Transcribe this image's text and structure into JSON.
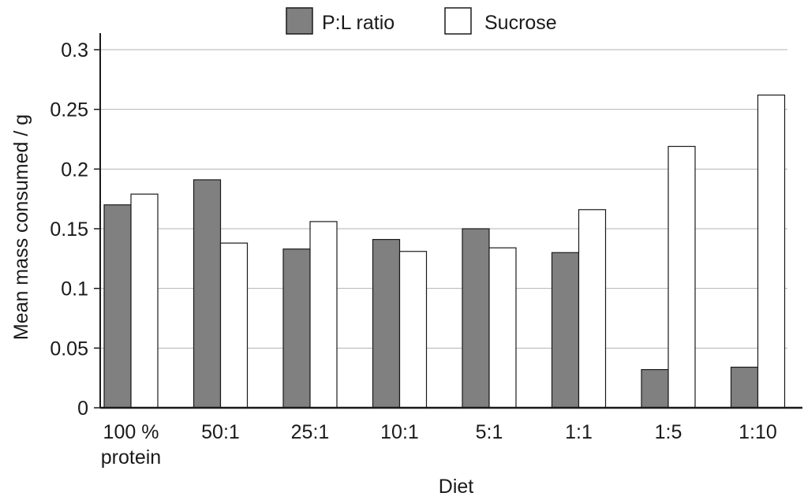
{
  "chart_data": {
    "type": "bar",
    "title": "",
    "xlabel": "Diet",
    "ylabel": "Mean mass consumed / g",
    "categories": [
      [
        "100 %",
        "protein"
      ],
      [
        "50:1"
      ],
      [
        "25:1"
      ],
      [
        "10:1"
      ],
      [
        "5:1"
      ],
      [
        "1:1"
      ],
      [
        "1:5"
      ],
      [
        "1:10"
      ]
    ],
    "series": [
      {
        "name": "P:L ratio",
        "color": "#808080",
        "values": [
          0.17,
          0.191,
          0.133,
          0.141,
          0.15,
          0.13,
          0.032,
          0.034
        ]
      },
      {
        "name": "Sucrose",
        "color": "#ffffff",
        "values": [
          0.179,
          0.138,
          0.156,
          0.131,
          0.134,
          0.166,
          0.219,
          0.262
        ]
      }
    ],
    "ylim": [
      0,
      0.3
    ],
    "yticks": [
      "0",
      "0.05",
      "0.1",
      "0.15",
      "0.2",
      "0.25",
      "0.3"
    ],
    "grid": true,
    "legend_position": "top-center"
  }
}
